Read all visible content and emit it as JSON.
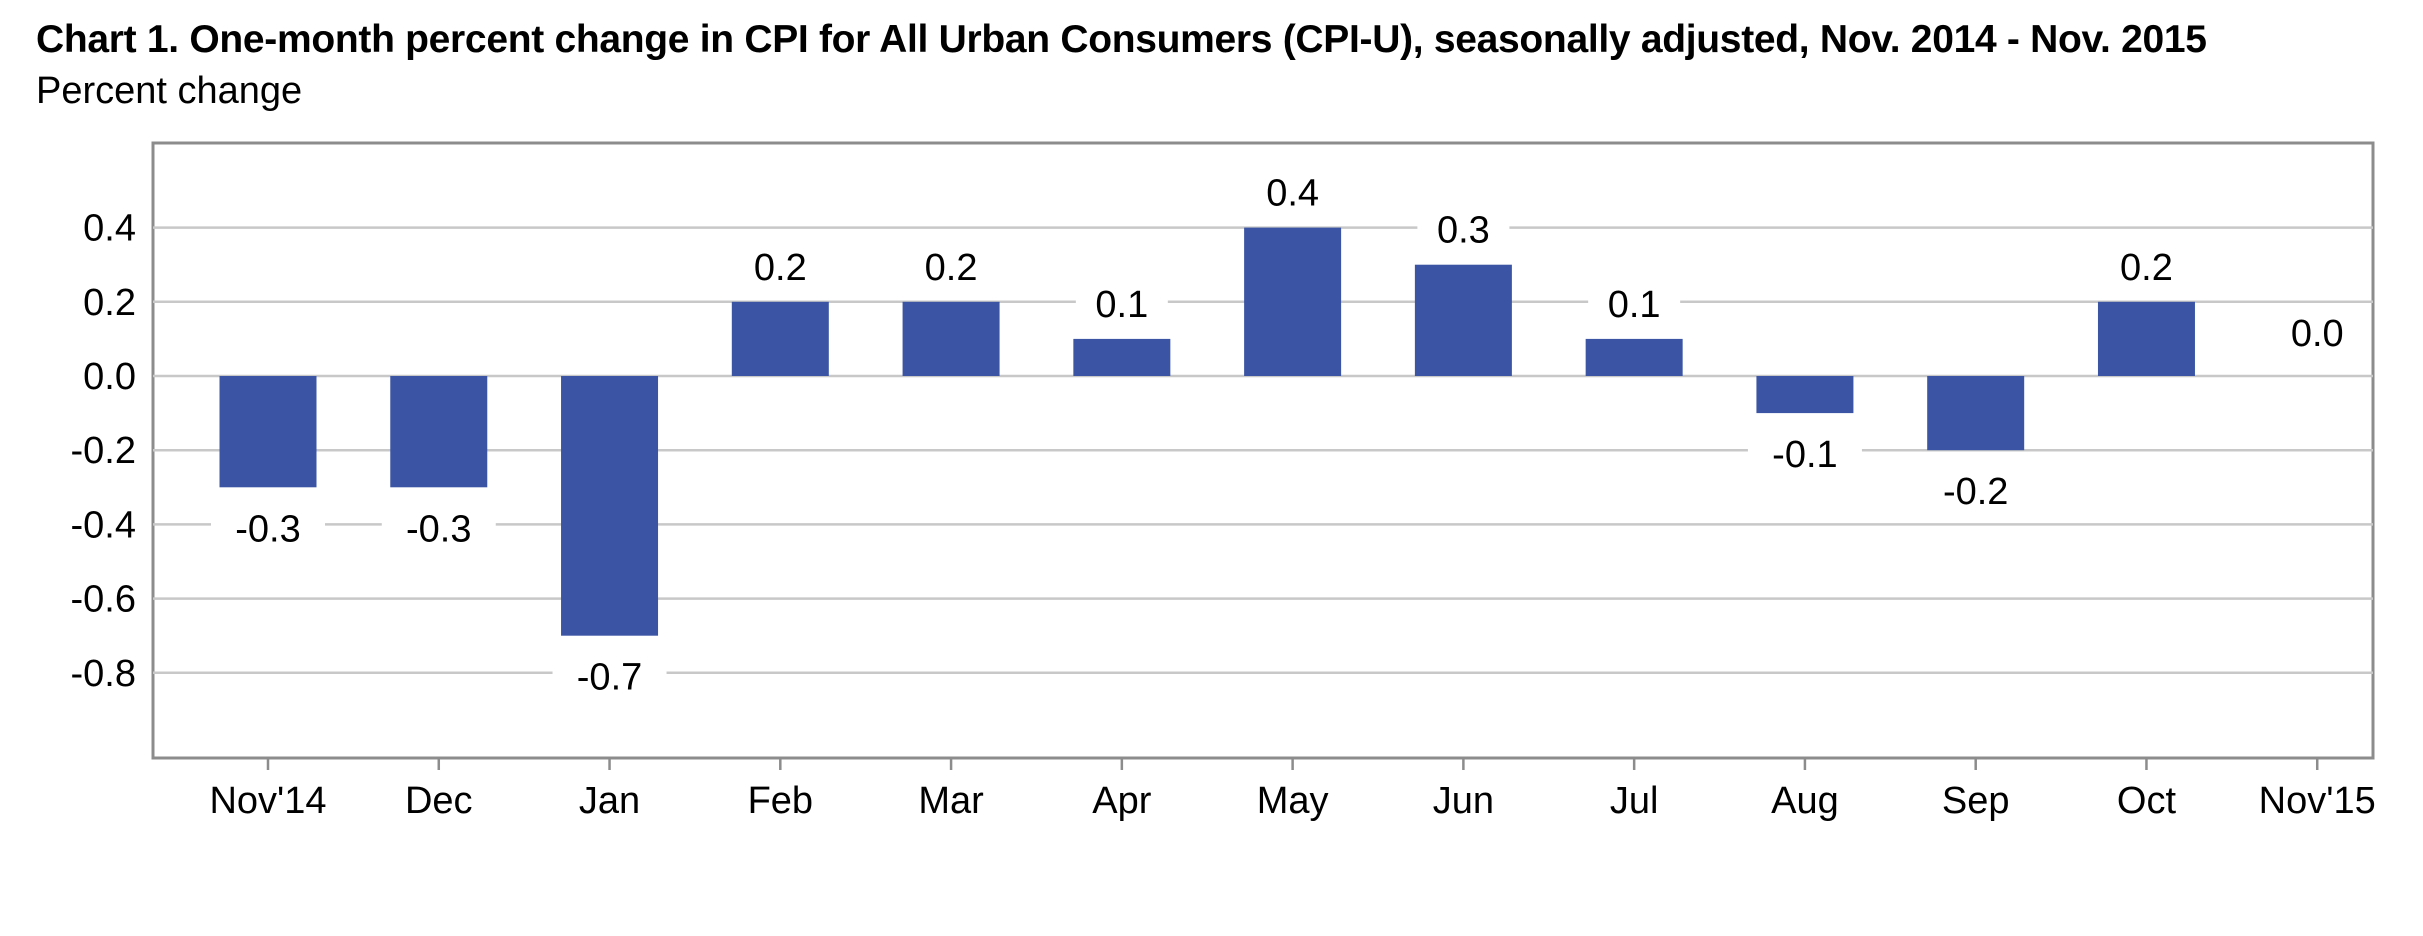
{
  "title": "Chart 1. One-month percent change in CPI for All Urban Consumers (CPI-U), seasonally adjusted, Nov. 2014 - Nov. 2015",
  "subtitle": "Percent change",
  "colors": {
    "bar": "#3b55a4",
    "grid": "#c8c8c8",
    "axis": "#8c8c8c"
  },
  "chart_data": {
    "type": "bar",
    "categories": [
      "Nov'14",
      "Dec",
      "Jan",
      "Feb",
      "Mar",
      "Apr",
      "May",
      "Jun",
      "Jul",
      "Aug",
      "Sep",
      "Oct",
      "Nov'15"
    ],
    "values": [
      -0.3,
      -0.3,
      -0.7,
      0.2,
      0.2,
      0.1,
      0.4,
      0.3,
      0.1,
      -0.1,
      -0.2,
      0.2,
      0.0
    ],
    "data_labels": [
      "-0.3",
      "-0.3",
      "-0.7",
      "0.2",
      "0.2",
      "0.1",
      "0.4",
      "0.3",
      "0.1",
      "-0.1",
      "-0.2",
      "0.2",
      "0.0"
    ],
    "title": "Chart 1. One-month percent change in CPI for All Urban Consumers (CPI-U), seasonally adjusted, Nov. 2014 - Nov. 2015",
    "ylabel": "Percent change",
    "xlabel": "",
    "ylim": [
      -1.0,
      0.6
    ],
    "yticks": [
      0.4,
      0.2,
      0.0,
      -0.2,
      -0.4,
      -0.6,
      -0.8
    ],
    "ytick_labels": [
      "0.4",
      "0.2",
      "0.0",
      "-0.2",
      "-0.4",
      "-0.6",
      "-0.8"
    ],
    "grid": true,
    "legend": "none"
  }
}
